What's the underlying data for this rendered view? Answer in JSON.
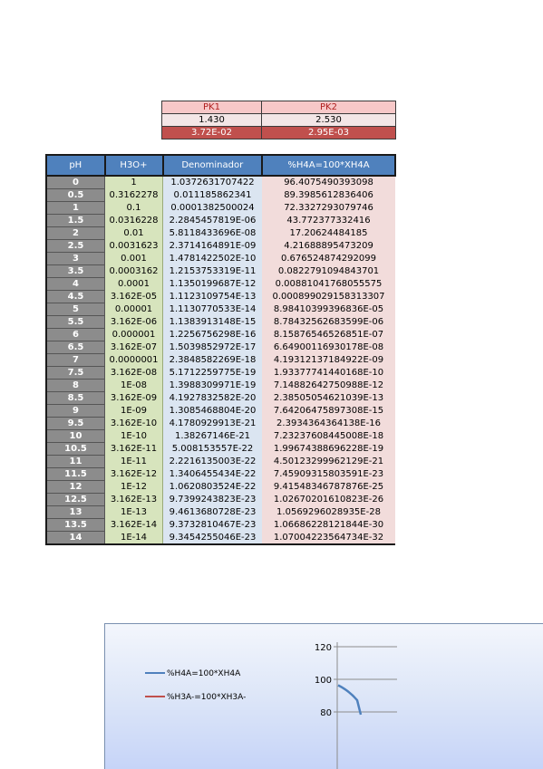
{
  "pk": {
    "headers": [
      "PK1",
      "PK2"
    ],
    "values": [
      "1.430",
      "2.530"
    ],
    "ka": [
      "3.72E-02",
      "2.95E-03"
    ]
  },
  "table": {
    "headers": [
      "pH",
      "H3O+",
      "Denominador",
      "%H4A=100*XH4A"
    ],
    "rows": [
      [
        "0",
        "1",
        "1.0372631707422",
        "96.4075490393098"
      ],
      [
        "0.5",
        "0.3162278",
        "0.011185862341",
        "89.3985612836406"
      ],
      [
        "1",
        "0.1",
        "0.0001382500024",
        "72.3327293079746"
      ],
      [
        "1.5",
        "0.0316228",
        "2.2845457819E-06",
        "43.772377332416"
      ],
      [
        "2",
        "0.01",
        "5.8118433696E-08",
        "17.20624484185"
      ],
      [
        "2.5",
        "0.0031623",
        "2.3714164891E-09",
        "4.21688895473209"
      ],
      [
        "3",
        "0.001",
        "1.4781422502E-10",
        "0.676524874292099"
      ],
      [
        "3.5",
        "0.0003162",
        "1.2153753319E-11",
        "0.0822791094843701"
      ],
      [
        "4",
        "0.0001",
        "1.1350199687E-12",
        "0.00881041768055575"
      ],
      [
        "4.5",
        "3.162E-05",
        "1.1123109754E-13",
        "0.000899029158313307"
      ],
      [
        "5",
        "0.00001",
        "1.1130770533E-14",
        "8.98410399396836E-05"
      ],
      [
        "5.5",
        "3.162E-06",
        "1.1383913148E-15",
        "8.78432562683599E-06"
      ],
      [
        "6",
        "0.000001",
        "1.2256756298E-16",
        "8.15876546526851E-07"
      ],
      [
        "6.5",
        "3.162E-07",
        "1.5039852972E-17",
        "6.64900116930178E-08"
      ],
      [
        "7",
        "0.0000001",
        "2.3848582269E-18",
        "4.19312137184922E-09"
      ],
      [
        "7.5",
        "3.162E-08",
        "5.1712259775E-19",
        "1.93377741440168E-10"
      ],
      [
        "8",
        "1E-08",
        "1.3988309971E-19",
        "7.14882642750988E-12"
      ],
      [
        "8.5",
        "3.162E-09",
        "4.1927832582E-20",
        "2.38505054621039E-13"
      ],
      [
        "9",
        "1E-09",
        "1.3085468804E-20",
        "7.64206475897308E-15"
      ],
      [
        "9.5",
        "3.162E-10",
        "4.1780929913E-21",
        "2.3934364364138E-16"
      ],
      [
        "10",
        "1E-10",
        "1.38267146E-21",
        "7.23237608445008E-18"
      ],
      [
        "10.5",
        "3.162E-11",
        "5.008153557E-22",
        "1.99674388696228E-19"
      ],
      [
        "11",
        "1E-11",
        "2.2216135003E-22",
        "4.50123299962129E-21"
      ],
      [
        "11.5",
        "3.162E-12",
        "1.3406455434E-22",
        "7.45909315803591E-23"
      ],
      [
        "12",
        "1E-12",
        "1.0620803524E-22",
        "9.41548346787876E-25"
      ],
      [
        "12.5",
        "3.162E-13",
        "9.7399243823E-23",
        "1.02670201610823E-26"
      ],
      [
        "13",
        "1E-13",
        "9.4613680728E-23",
        "1.0569296028935E-28"
      ],
      [
        "13.5",
        "3.162E-14",
        "9.3732810467E-23",
        "1.06686228121844E-30"
      ],
      [
        "14",
        "1E-14",
        "9.3454255046E-23",
        "1.07004223564734E-32"
      ]
    ]
  },
  "chart": {
    "legend": [
      {
        "label": "%H4A=100*XH4A",
        "color": "#4f81bd"
      },
      {
        "label": "%H3A-=100*XH3A-",
        "color": "#c0504d"
      }
    ],
    "y_ticks": [
      "120",
      "100",
      "80"
    ]
  },
  "chart_data": {
    "type": "line",
    "title": "",
    "xlabel": "",
    "ylabel": "",
    "ylim": [
      80,
      120
    ],
    "series": [
      {
        "name": "%H4A=100*XH4A",
        "x": [
          0,
          0.5
        ],
        "values": [
          96.4,
          89.4
        ]
      },
      {
        "name": "%H3A-=100*XH3A-",
        "x": [],
        "values": []
      }
    ]
  }
}
